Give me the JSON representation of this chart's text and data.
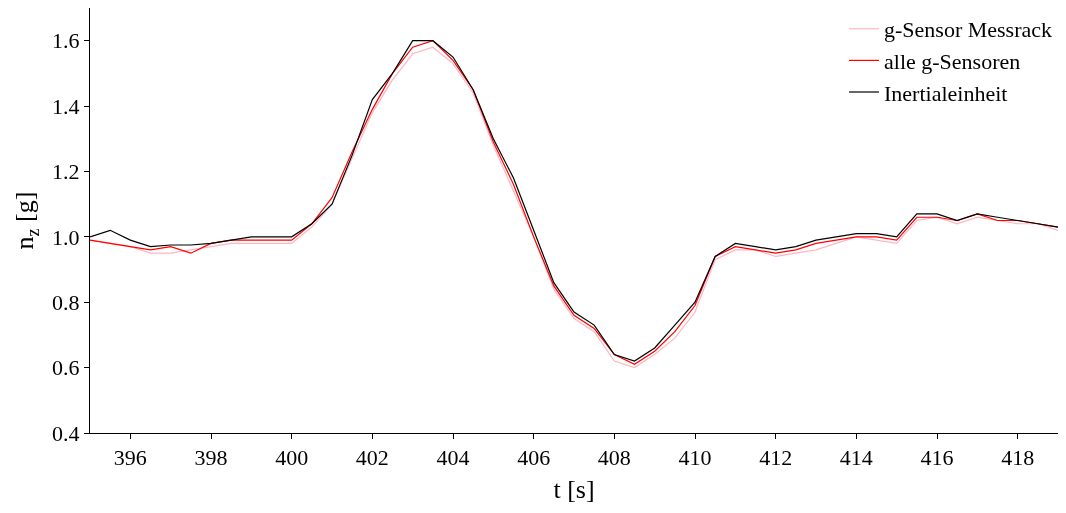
{
  "chart_data": {
    "type": "line",
    "xlabel": "t [s]",
    "ylabel": "n$_{z}$ [g]",
    "xlim": [
      395,
      419
    ],
    "xticks": [
      396,
      398,
      400,
      402,
      404,
      406,
      408,
      410,
      412,
      414,
      416,
      418
    ],
    "ylim": [
      0.4,
      1.7
    ],
    "yticks": [
      {
        "value": 0.4,
        "label": "0.4"
      },
      {
        "value": 0.6,
        "label": "0.6"
      },
      {
        "value": 0.8,
        "label": "0.8"
      },
      {
        "value": 1.0,
        "label": "1.0"
      },
      {
        "value": 1.2,
        "label": "1.2"
      },
      {
        "value": 1.4,
        "label": "1.4"
      },
      {
        "value": 1.6,
        "label": "1.6"
      }
    ],
    "legend": "top right",
    "marker": "none",
    "line_style": "solid",
    "x": [
      395,
      395.5,
      396,
      396.5,
      397,
      397.5,
      398,
      398.5,
      399,
      399.5,
      400,
      400.5,
      401,
      401.5,
      402,
      402.5,
      403,
      403.5,
      404,
      404.5,
      405,
      405.5,
      406,
      406.5,
      407,
      407.5,
      408,
      408.5,
      409,
      409.5,
      410,
      410.5,
      411,
      411.5,
      412,
      412.5,
      413,
      413.5,
      414,
      414.5,
      415,
      415.5,
      416,
      416.5,
      417,
      417.5,
      418,
      418.5,
      419
    ],
    "series": [
      {
        "name": "g-Sensor Messrack",
        "color": "#ffb6c1",
        "values": [
          0.99,
          0.98,
          0.97,
          0.95,
          0.95,
          0.96,
          0.97,
          0.98,
          0.98,
          0.98,
          0.98,
          1.03,
          1.1,
          1.24,
          1.38,
          1.48,
          1.56,
          1.58,
          1.53,
          1.44,
          1.28,
          1.14,
          1.0,
          0.84,
          0.75,
          0.71,
          0.62,
          0.6,
          0.64,
          0.69,
          0.77,
          0.93,
          0.96,
          0.96,
          0.94,
          0.95,
          0.96,
          0.98,
          1.0,
          0.99,
          0.98,
          1.05,
          1.06,
          1.04,
          1.06,
          1.05,
          1.04,
          1.04,
          1.02
        ]
      },
      {
        "name": "alle g-Sensoren",
        "color": "#ff0000",
        "values": [
          0.99,
          0.98,
          0.97,
          0.96,
          0.97,
          0.95,
          0.98,
          0.99,
          0.99,
          0.99,
          0.99,
          1.04,
          1.12,
          1.26,
          1.39,
          1.5,
          1.58,
          1.6,
          1.54,
          1.45,
          1.29,
          1.16,
          1.0,
          0.85,
          0.76,
          0.72,
          0.64,
          0.61,
          0.65,
          0.71,
          0.79,
          0.94,
          0.97,
          0.96,
          0.95,
          0.96,
          0.98,
          0.99,
          1.0,
          1.0,
          0.99,
          1.06,
          1.06,
          1.05,
          1.07,
          1.05,
          1.05,
          1.04,
          1.03
        ]
      },
      {
        "name": "Inertialeinheit",
        "color": "#000000",
        "values": [
          1.0,
          1.02,
          0.99,
          0.97,
          0.975,
          0.975,
          0.98,
          0.99,
          1.0,
          1.0,
          1.0,
          1.04,
          1.1,
          1.25,
          1.42,
          1.5,
          1.6,
          1.6,
          1.55,
          1.45,
          1.3,
          1.18,
          1.02,
          0.86,
          0.77,
          0.73,
          0.64,
          0.62,
          0.66,
          0.73,
          0.8,
          0.94,
          0.98,
          0.97,
          0.96,
          0.97,
          0.99,
          1.0,
          1.01,
          1.01,
          1.0,
          1.07,
          1.07,
          1.05,
          1.07,
          1.06,
          1.05,
          1.04,
          1.03
        ]
      }
    ]
  }
}
